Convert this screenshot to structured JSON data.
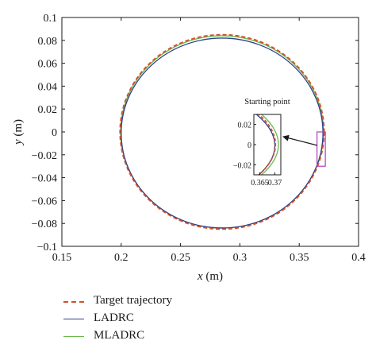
{
  "chart_data": {
    "type": "line",
    "title": "",
    "xlabel_var": "x",
    "xlabel_unit": " (m)",
    "ylabel_var": "y",
    "ylabel_unit": " (m)",
    "xlim": [
      0.15,
      0.4
    ],
    "ylim": [
      -0.1,
      0.1
    ],
    "xticks": [
      0.15,
      0.2,
      0.25,
      0.3,
      0.35,
      0.4
    ],
    "xtick_labels": [
      "0.15",
      "0.2",
      "0.25",
      "0.3",
      "0.35",
      "0.4"
    ],
    "yticks": [
      0.1,
      0.08,
      0.06,
      0.04,
      0.02,
      0,
      -0.02,
      -0.04,
      -0.06,
      -0.08,
      -0.1
    ],
    "ytick_labels": [
      "0.1",
      "0.08",
      "0.06",
      "0.04",
      "0.02",
      "0",
      "−0.02",
      "−0.04",
      "−0.06",
      "−0.08",
      "−0.1"
    ],
    "grid": false,
    "legend_position": "below-left",
    "series": [
      {
        "name": "Target trajectory",
        "color": "#d4502a",
        "style": "dashed",
        "shape": "circle",
        "center": [
          0.285,
          0.0
        ],
        "radius_x": 0.086,
        "radius_y": 0.085
      },
      {
        "name": "LADRC",
        "color": "#2e3f8f",
        "style": "solid",
        "shape": "circle",
        "center": [
          0.285,
          -0.001
        ],
        "radius_x": 0.085,
        "radius_y": 0.083
      },
      {
        "name": "MLADRC",
        "color": "#6cb84a",
        "style": "solid",
        "shape": "circle",
        "center": [
          0.285,
          0.0
        ],
        "radius_x": 0.0855,
        "radius_y": 0.084
      }
    ],
    "annotations": {
      "zoom_box_x": [
        0.365,
        0.372
      ],
      "zoom_box_y": [
        -0.03,
        0.0
      ],
      "zoom_box_color": "#b23fb8",
      "inset_title": "Starting point",
      "inset_xlim": [
        0.363,
        0.372
      ],
      "inset_ylim": [
        -0.03,
        0.03
      ],
      "inset_xticks": [
        0.365,
        0.37
      ],
      "inset_xtick_labels": [
        "0.365",
        "0.37"
      ],
      "inset_yticks": [
        0.02,
        0,
        -0.02
      ],
      "inset_ytick_labels": [
        "0.02",
        "0",
        "−0.02"
      ]
    }
  }
}
